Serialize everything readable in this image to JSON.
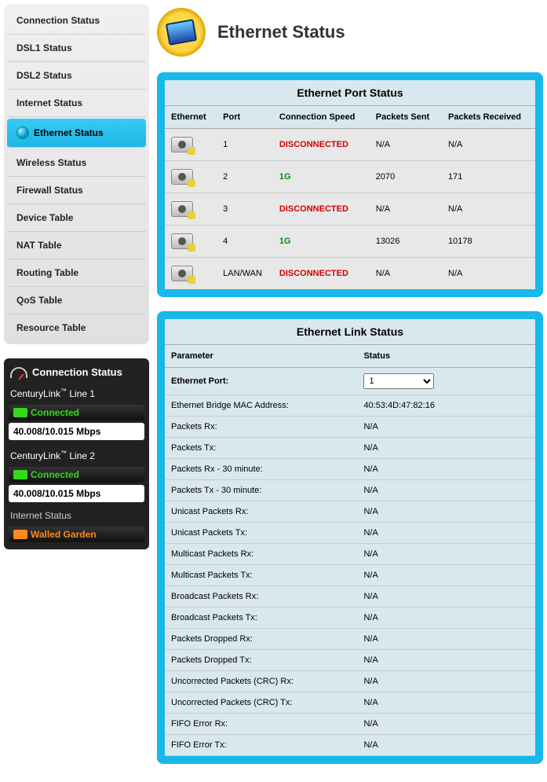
{
  "page": {
    "title": "Ethernet Status"
  },
  "nav": {
    "items": [
      {
        "label": "Connection Status",
        "active": false
      },
      {
        "label": "DSL1 Status",
        "active": false
      },
      {
        "label": "DSL2 Status",
        "active": false
      },
      {
        "label": "Internet Status",
        "active": false
      },
      {
        "label": "Ethernet Status",
        "active": true
      },
      {
        "label": "Wireless Status",
        "active": false
      },
      {
        "label": "Firewall Status",
        "active": false
      },
      {
        "label": "Device Table",
        "active": false
      },
      {
        "label": "NAT Table",
        "active": false
      },
      {
        "label": "Routing Table",
        "active": false
      },
      {
        "label": "QoS Table",
        "active": false
      },
      {
        "label": "Resource Table",
        "active": false
      }
    ]
  },
  "conn_status": {
    "title": "Connection Status",
    "line1_prefix": "CenturyLink",
    "line1_suffix": " Line 1",
    "line1_state": "Connected",
    "line1_speed": "40.008/10.015 Mbps",
    "line2_prefix": "CenturyLink",
    "line2_suffix": " Line 2",
    "line2_state": "Connected",
    "line2_speed": "40.008/10.015 Mbps",
    "internet_label": "Internet Status",
    "internet_state": "Walled Garden"
  },
  "port_status": {
    "title": "Ethernet Port Status",
    "headers": {
      "eth": "Ethernet",
      "port": "Port",
      "speed": "Connection Speed",
      "sent": "Packets Sent",
      "recv": "Packets Received"
    },
    "rows": [
      {
        "port": "1",
        "speed": "DISCONNECTED",
        "speed_cls": "disc",
        "sent": "N/A",
        "recv": "N/A"
      },
      {
        "port": "2",
        "speed": "1G",
        "speed_cls": "conn",
        "sent": "2070",
        "recv": "171"
      },
      {
        "port": "3",
        "speed": "DISCONNECTED",
        "speed_cls": "disc",
        "sent": "N/A",
        "recv": "N/A"
      },
      {
        "port": "4",
        "speed": "1G",
        "speed_cls": "conn",
        "sent": "13026",
        "recv": "10178"
      },
      {
        "port": "LAN/WAN",
        "speed": "DISCONNECTED",
        "speed_cls": "disc",
        "sent": "N/A",
        "recv": "N/A"
      }
    ]
  },
  "link_status": {
    "title": "Ethernet Link Status",
    "param_header": "Parameter",
    "status_header": "Status",
    "port_label": "Ethernet Port:",
    "port_selected": "1",
    "rows": [
      {
        "label": "Ethernet Bridge MAC Address:",
        "value": "40:53:4D:47:82:16"
      },
      {
        "label": "Packets Rx:",
        "value": "N/A"
      },
      {
        "label": "Packets Tx:",
        "value": "N/A"
      },
      {
        "label": "Packets Rx - 30 minute:",
        "value": "N/A"
      },
      {
        "label": "Packets Tx - 30 minute:",
        "value": "N/A"
      },
      {
        "label": "Unicast Packets Rx:",
        "value": "N/A"
      },
      {
        "label": "Unicast Packets Tx:",
        "value": "N/A"
      },
      {
        "label": "Multicast Packets Rx:",
        "value": "N/A"
      },
      {
        "label": "Multicast Packets Tx:",
        "value": "N/A"
      },
      {
        "label": "Broadcast Packets Rx:",
        "value": "N/A"
      },
      {
        "label": "Broadcast Packets Tx:",
        "value": "N/A"
      },
      {
        "label": "Packets Dropped Rx:",
        "value": "N/A"
      },
      {
        "label": "Packets Dropped Tx:",
        "value": "N/A"
      },
      {
        "label": "Uncorrected Packets (CRC) Rx:",
        "value": "N/A"
      },
      {
        "label": "Uncorrected Packets (CRC) Tx:",
        "value": "N/A"
      },
      {
        "label": "FIFO Error Rx:",
        "value": "N/A"
      },
      {
        "label": "FIFO Error Tx:",
        "value": "N/A"
      }
    ]
  }
}
